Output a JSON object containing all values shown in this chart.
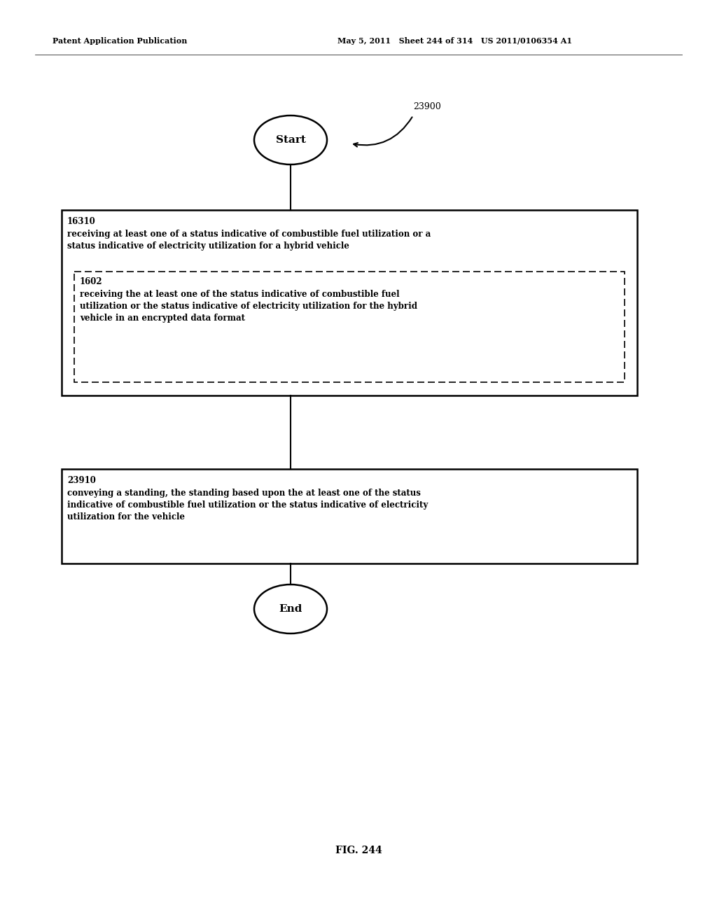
{
  "header_left": "Patent Application Publication",
  "header_right": "May 5, 2011   Sheet 244 of 314   US 2011/0106354 A1",
  "fig_label": "FIG. 244",
  "diagram_label": "23900",
  "start_label": "Start",
  "end_label": "End",
  "box1_id": "16310",
  "box1_text": "receiving at least one of a status indicative of combustible fuel utilization or a\nstatus indicative of electricity utilization for a hybrid vehicle",
  "box1_inner_id": "1602",
  "box1_inner_text": "receiving the at least one of the status indicative of combustible fuel\nutilization or the status indicative of electricity utilization for the hybrid\nvehicle in an encrypted data format",
  "box2_id": "23910",
  "box2_text": "conveying a standing, the standing based upon the at least one of the status\nindicative of combustible fuel utilization or the status indicative of electricity\nutilization for the vehicle",
  "bg_color": "#ffffff",
  "text_color": "#000000",
  "font_size": 8.5,
  "header_font_size": 8,
  "id_font_size": 8.5
}
